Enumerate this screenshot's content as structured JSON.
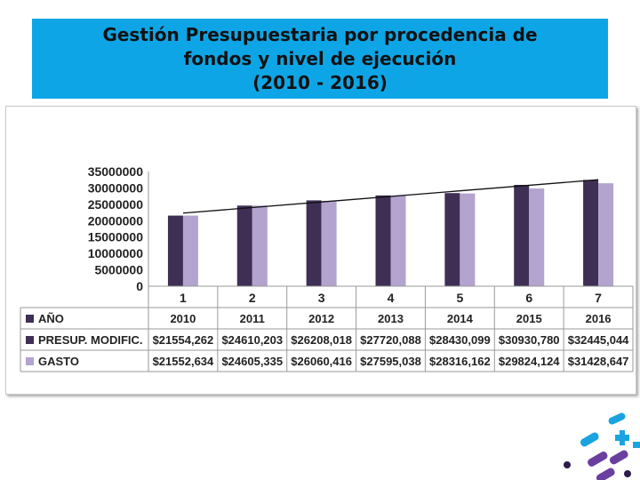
{
  "title": {
    "line1": "Gestión Presupuestaria por procedencia de",
    "line2": "fondos y nivel de ejecución",
    "line3": "(2010 - 2016)"
  },
  "colors": {
    "title_bg": "#0ea5e6",
    "presup": "#3f2f55",
    "gasto": "#b3a3cf",
    "trend": "#111111"
  },
  "chart_data": {
    "type": "bar",
    "categories": [
      "1",
      "2",
      "3",
      "4",
      "5",
      "6",
      "7"
    ],
    "ylim": [
      0,
      35000000
    ],
    "yticks": [
      "35000000",
      "30000000",
      "25000000",
      "20000000",
      "15000000",
      "10000000",
      "5000000",
      "0"
    ],
    "series": [
      {
        "name": "AÑO",
        "values": [
          2010,
          2011,
          2012,
          2013,
          2014,
          2015,
          2016
        ],
        "color": "#3f2f55",
        "labels": [
          "2010",
          "2011",
          "2012",
          "2013",
          "2014",
          "2015",
          "2016"
        ]
      },
      {
        "name": "PRESUP. MODIFIC.",
        "values": [
          21554262,
          24610203,
          26208018,
          27720088,
          28430099,
          30930780,
          32445044
        ],
        "color": "#3f2f55",
        "labels": [
          "$21554,262",
          "$24610,203",
          "$26208,018",
          "$27720,088",
          "$28430,099",
          "$30930,780",
          "$32445,044"
        ]
      },
      {
        "name": "GASTO",
        "values": [
          21552634,
          24605335,
          26060416,
          27595038,
          28316162,
          29824124,
          31428647
        ],
        "color": "#b3a3cf",
        "labels": [
          "$21552,634",
          "$24605,335",
          "$26060,416",
          "$27595,038",
          "$28316,162",
          "$29824,124",
          "$31428,647"
        ]
      }
    ],
    "trendline": true,
    "grid": false,
    "legend": "data-table"
  }
}
